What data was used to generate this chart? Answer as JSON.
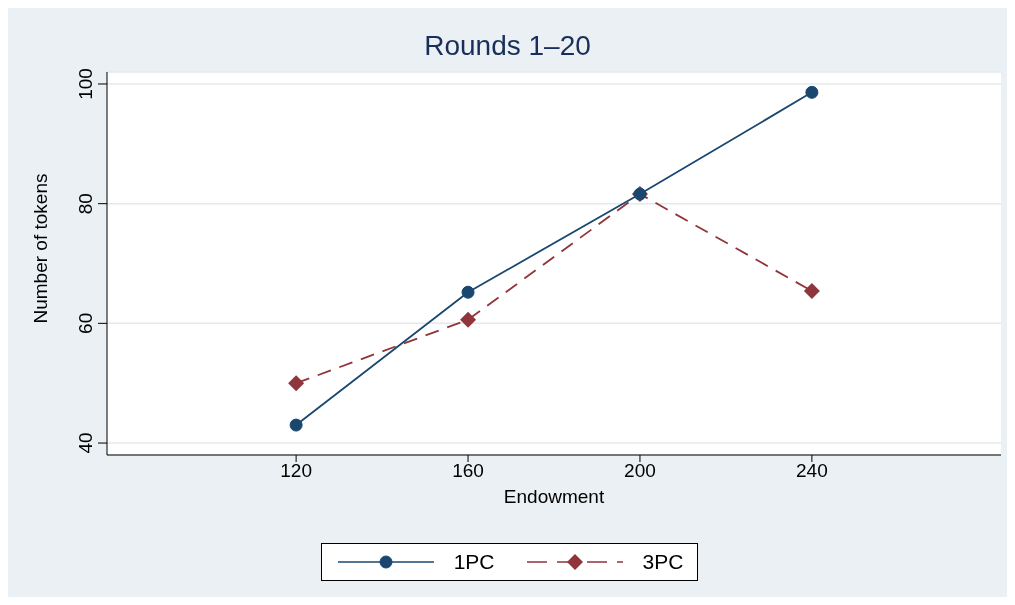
{
  "chart_data": {
    "type": "line",
    "title": "Rounds 1–20",
    "xlabel": "Endowment",
    "ylabel": "Number of tokens",
    "x": [
      120,
      160,
      200,
      240
    ],
    "series": [
      {
        "name": "1PC",
        "color": "#1a476f",
        "values": [
          43,
          65.2,
          81.6,
          98.6
        ],
        "marker": "circle",
        "line_style": "solid"
      },
      {
        "name": "3PC",
        "color": "#90353b",
        "values": [
          50,
          60.6,
          81.6,
          65.4
        ],
        "marker": "diamond",
        "line_style": "dashed"
      }
    ],
    "xlim": [
      76,
      284
    ],
    "xticks": [
      120,
      160,
      200,
      240
    ],
    "ylim": [
      38,
      102
    ],
    "yticks": [
      40,
      60,
      80,
      100
    ],
    "grid": "y",
    "legend": "bottom"
  }
}
